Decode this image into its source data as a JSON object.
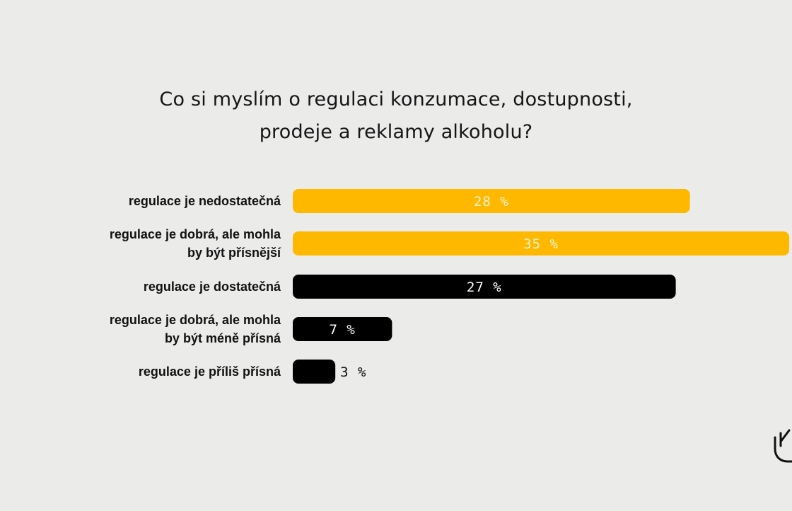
{
  "chart_data": {
    "type": "bar",
    "orientation": "horizontal",
    "title": [
      "Co si myslím o regulaci konzumace, dostupnosti,",
      "prodeje a reklamy alkoholu?"
    ],
    "categories": [
      [
        "regulace je nedostatečná"
      ],
      [
        "regulace je dobrá, ale mohla",
        "by být přísnější"
      ],
      [
        "regulace je dostatečná"
      ],
      [
        "regulace je dobrá, ale mohla",
        "by být méně přísná"
      ],
      [
        "regulace je příliš přísná"
      ]
    ],
    "values": [
      28,
      35,
      27,
      7,
      3
    ],
    "value_labels": [
      "28 %",
      "35 %",
      "27 %",
      "7 %",
      "3 %"
    ],
    "bar_colors": [
      "#ffb800",
      "#ffb800",
      "#000000",
      "#000000",
      "#000000"
    ],
    "label_colors": [
      "#fff3cf",
      "#fff3cf",
      "#ffffff",
      "#ffffff",
      "#111111"
    ],
    "xlim": [
      0,
      35
    ],
    "grid": false,
    "legend": "none"
  },
  "logo": {
    "icon": "hand-logo-icon"
  }
}
